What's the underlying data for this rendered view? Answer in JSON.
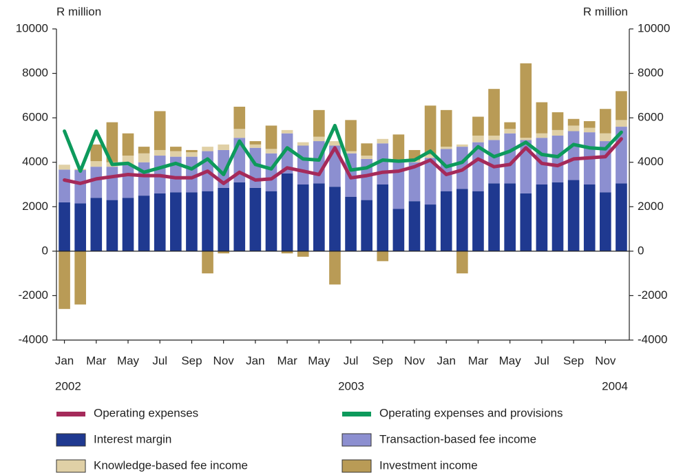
{
  "chart_data": {
    "type": "bar",
    "stacked": true,
    "y_label": "R million",
    "y2_label": "R million",
    "categories": [
      "Jan",
      null,
      "Mar",
      null,
      "May",
      null,
      "Jul",
      null,
      "Sep",
      null,
      "Nov",
      null,
      "Jan",
      null,
      "Mar",
      null,
      "May",
      null,
      "Jul",
      null,
      "Sep",
      null,
      "Nov",
      null,
      "Jan",
      null,
      "Mar",
      null,
      "May",
      null,
      "Jul",
      null,
      "Sep",
      null,
      "Nov",
      null
    ],
    "years": [
      "2002",
      "2003",
      "2004"
    ],
    "ylim": [
      -4000,
      10000
    ],
    "yticks": [
      -4000,
      -2000,
      0,
      2000,
      4000,
      6000,
      8000,
      10000
    ],
    "y2lim": [
      -4000,
      10000
    ],
    "y2ticks": [
      -4000,
      -2000,
      0,
      2000,
      4000,
      6000,
      8000,
      10000
    ],
    "series": [
      {
        "name": "Operating expenses",
        "type": "line",
        "color": "#a52a5a",
        "values": [
          3200,
          3050,
          3250,
          3350,
          3450,
          3400,
          3400,
          3300,
          3300,
          3600,
          3050,
          3550,
          3200,
          3250,
          3750,
          3600,
          3450,
          4650,
          3300,
          3400,
          3550,
          3600,
          3800,
          4100,
          3450,
          3650,
          4150,
          3800,
          3900,
          4650,
          3950,
          3850,
          4150,
          4200,
          4250,
          5050
        ]
      },
      {
        "name": "Operating expenses and provisions",
        "type": "line",
        "color": "#0d9a5c",
        "values": [
          5400,
          3600,
          5400,
          3900,
          3950,
          3550,
          3750,
          3950,
          3700,
          4150,
          3450,
          4950,
          3900,
          3700,
          4650,
          4150,
          4100,
          5650,
          3650,
          3750,
          4100,
          4050,
          4100,
          4500,
          3800,
          4000,
          4700,
          4250,
          4500,
          4900,
          4350,
          4250,
          4800,
          4650,
          4600,
          5350
        ]
      },
      {
        "name": "Interest margin",
        "type": "bar",
        "color": "#1f3990",
        "values": [
          2200,
          2150,
          2400,
          2300,
          2400,
          2500,
          2600,
          2650,
          2650,
          2700,
          2850,
          3100,
          2850,
          2700,
          3500,
          3000,
          3050,
          2900,
          2450,
          2300,
          3000,
          1900,
          2250,
          2100,
          2700,
          2800,
          2700,
          3050,
          3050,
          2600,
          3000,
          3100,
          3200,
          3000,
          2650,
          3050
        ]
      },
      {
        "name": "Transaction-based fee income",
        "type": "bar",
        "color": "#8c8fd0",
        "values": [
          1470,
          1500,
          1400,
          1500,
          1500,
          1500,
          1700,
          1600,
          1600,
          1800,
          1700,
          2000,
          1800,
          1700,
          1800,
          1750,
          1900,
          1850,
          1950,
          1850,
          1850,
          2100,
          1750,
          2100,
          1900,
          1900,
          2200,
          1950,
          2250,
          2400,
          2100,
          2100,
          2200,
          2350,
          2300,
          2550
        ]
      },
      {
        "name": "Knowledge-based fee income",
        "type": "bar",
        "color": "#e0d0a6",
        "values": [
          220,
          50,
          250,
          200,
          400,
          400,
          250,
          250,
          200,
          200,
          250,
          400,
          150,
          200,
          150,
          150,
          200,
          200,
          100,
          150,
          200,
          100,
          100,
          150,
          100,
          100,
          300,
          200,
          200,
          100,
          200,
          250,
          250,
          200,
          350,
          300
        ]
      },
      {
        "name": "Investment income",
        "type": "bar",
        "color": "#b99b56",
        "values": [
          -2600,
          -2400,
          750,
          1800,
          1000,
          300,
          1750,
          200,
          100,
          -1000,
          -100,
          1000,
          150,
          1050,
          -100,
          -250,
          1200,
          -1500,
          1400,
          550,
          -450,
          1150,
          450,
          2200,
          1650,
          -1000,
          850,
          2100,
          300,
          3350,
          1400,
          800,
          300,
          300,
          1100,
          1300
        ]
      }
    ]
  }
}
